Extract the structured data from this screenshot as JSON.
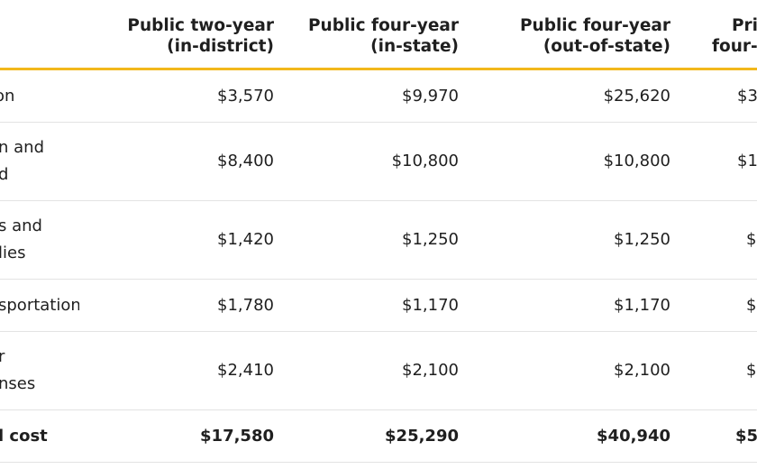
{
  "table": {
    "headers": [
      {
        "line1": "Public two-year",
        "line2": "(in-district)"
      },
      {
        "line1": "Public four-year",
        "line2": "(in-state)"
      },
      {
        "line1": "Public four-year",
        "line2": "(out-of-state)"
      },
      {
        "line1": "Pri",
        "line2": "four-"
      }
    ],
    "rows": [
      {
        "label1": "on",
        "label2": "",
        "values": [
          "$3,570",
          "$9,970",
          "$25,620",
          "$3"
        ]
      },
      {
        "label1": "n and",
        "label2": "d",
        "values": [
          "$8,400",
          "$10,800",
          "$10,800",
          "$1"
        ]
      },
      {
        "label1": "s and",
        "label2": "lies",
        "values": [
          "$1,420",
          "$1,250",
          "$1,250",
          "$"
        ]
      },
      {
        "label1": "sportation",
        "label2": "",
        "values": [
          "$1,780",
          "$1,170",
          "$1,170",
          "$"
        ]
      },
      {
        "label1": "r",
        "label2": "nses",
        "values": [
          "$2,410",
          "$2,100",
          "$2,100",
          "$"
        ]
      }
    ],
    "total": {
      "label": "l cost",
      "values": [
        "$17,580",
        "$25,290",
        "$40,940",
        "$5"
      ]
    }
  },
  "colors": {
    "accent": "#f2b81b",
    "divider": "#e3e3e3",
    "text": "#1f1f1f"
  }
}
